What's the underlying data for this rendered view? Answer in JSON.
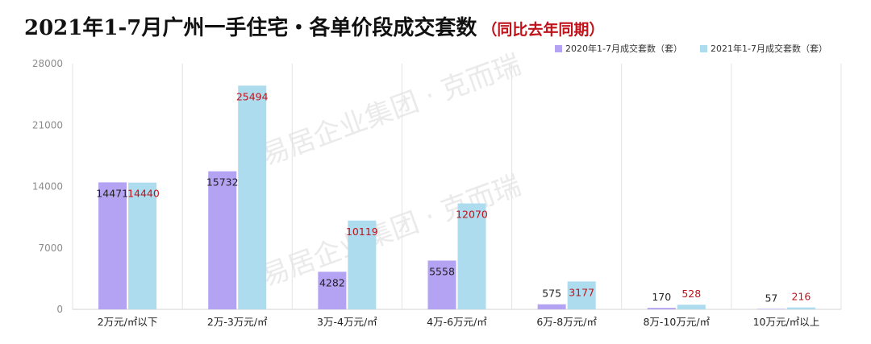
{
  "title": "2021年1-7月广州一手住宅・各单价段成交套数",
  "subtitle": "（同比去年同期）",
  "chart_data": {
    "type": "bar",
    "categories": [
      "2万元/㎡以下",
      "2万-3万元/㎡",
      "3万-4万元/㎡",
      "4万-6万元/㎡",
      "6万-8万元/㎡",
      "8万-10万元/㎡",
      "10万元/㎡以上"
    ],
    "series": [
      {
        "name": "2020年1-7月成交套数（套）",
        "values": [
          14471,
          15732,
          4282,
          5558,
          575,
          170,
          57
        ],
        "color": "#b3a3f2",
        "label_color": "#222222"
      },
      {
        "name": "2021年1-7月成交套数（套）",
        "values": [
          14440,
          25494,
          10119,
          12070,
          3177,
          528,
          216
        ],
        "color": "#acdcee",
        "label_color": "#c0121a"
      }
    ],
    "ylim": [
      0,
      28000
    ],
    "yticks": [
      0,
      7000,
      14000,
      21000,
      28000
    ],
    "legend_position": "top-right",
    "grid": false
  },
  "watermark": "易居企业集团 · 克而瑞"
}
